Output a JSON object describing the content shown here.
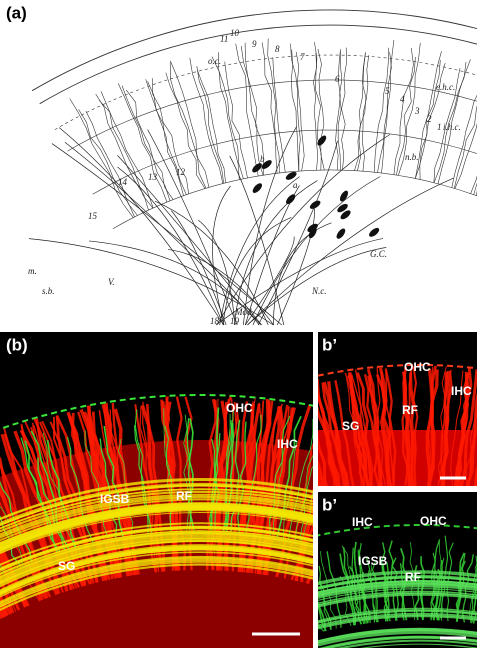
{
  "panel_a": {
    "label": "(a)",
    "annotations": [
      "o.c.",
      "e.h.c.",
      "i.h.c.",
      "n.b.",
      "G.C.",
      "N.c.",
      "Mod.",
      "m.",
      "s.b.",
      "V.",
      "a",
      "b",
      "18",
      "19",
      "15",
      "14",
      "13",
      "12",
      "11",
      "10",
      "9",
      "8",
      "7",
      "6",
      "5",
      "4",
      "3",
      "2",
      "1"
    ]
  },
  "panel_b": {
    "label": "(b)",
    "labels": [
      "OHC",
      "IHC",
      "IGSB",
      "RF",
      "SG"
    ]
  },
  "panel_b_prime_top": {
    "label": "b’",
    "labels": [
      "OHC",
      "IHC",
      "RF",
      "SG"
    ]
  },
  "panel_b_prime_bottom": {
    "label": "b’",
    "labels": [
      "IHC",
      "OHC",
      "IGSB",
      "RF"
    ]
  }
}
